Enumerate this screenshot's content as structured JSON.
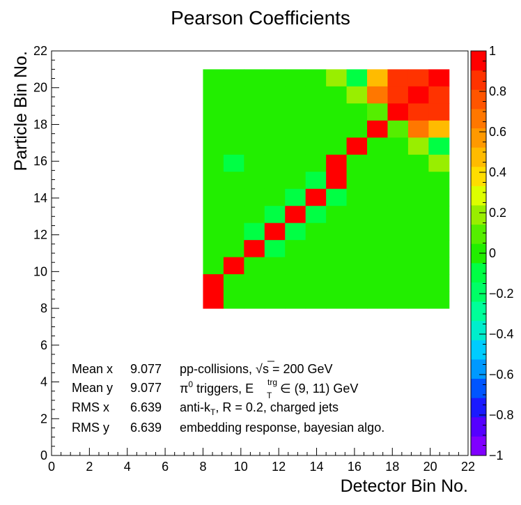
{
  "chart_data": {
    "type": "heatmap",
    "title": "Pearson Coefficients",
    "xlabel": "Detector Bin No.",
    "ylabel": "Particle Bin No.",
    "xlim": [
      0,
      22
    ],
    "ylim": [
      0,
      22
    ],
    "x_ticks": [
      "0",
      "2",
      "4",
      "6",
      "8",
      "10",
      "12",
      "14",
      "16",
      "18",
      "20",
      "22"
    ],
    "y_ticks": [
      "0",
      "2",
      "4",
      "6",
      "8",
      "10",
      "12",
      "14",
      "16",
      "18",
      "20",
      "22"
    ],
    "z_range": [
      -1,
      1
    ],
    "z_ticks": [
      "1",
      "0.8",
      "0.6",
      "0.4",
      "0.2",
      "0",
      "−0.2",
      "−0.4",
      "−0.6",
      "−0.8",
      "−1"
    ],
    "bin_range": [
      8,
      21
    ],
    "matrix_rows_top_to_bottom": [
      [
        0.02,
        0.02,
        0.02,
        -0.03,
        -0.03,
        -0.03,
        0.15,
        -0.12,
        0.45,
        0.9,
        0.9,
        0.95
      ],
      [
        0.02,
        0.02,
        0.02,
        -0.03,
        -0.03,
        0.02,
        -0.03,
        0.22,
        0.7,
        0.9,
        0.95,
        0.9
      ],
      [
        0.02,
        0.02,
        0.02,
        -0.03,
        -0.03,
        0.02,
        -0.03,
        -0.03,
        0.12,
        0.95,
        0.85,
        0.85
      ],
      [
        0.02,
        0.02,
        0.02,
        0.02,
        0.02,
        -0.03,
        -0.03,
        0.02,
        0.95,
        0.12,
        0.7,
        0.45
      ],
      [
        0.02,
        -0.03,
        -0.03,
        0.02,
        -0.03,
        -0.03,
        -0.03,
        0.95,
        0.02,
        -0.03,
        0.22,
        -0.12
      ],
      [
        0.02,
        -0.06,
        0.02,
        0.02,
        -0.03,
        -0.03,
        0.95,
        -0.03,
        -0.03,
        -0.03,
        -0.03,
        0.22
      ],
      [
        0.02,
        0.02,
        0.02,
        -0.03,
        -0.03,
        -0.08,
        0.95,
        -0.03,
        -0.03,
        0.02,
        0.02,
        -0.03
      ],
      [
        0.02,
        0.02,
        0.02,
        -0.03,
        -0.08,
        0.95,
        -0.06,
        -0.03,
        -0.03,
        -0.03,
        -0.03,
        -0.03
      ],
      [
        0.02,
        0.02,
        0.02,
        -0.08,
        0.95,
        -0.06,
        -0.03,
        -0.03,
        0.02,
        -0.03,
        -0.03,
        -0.03
      ],
      [
        0.02,
        -0.03,
        -0.08,
        0.95,
        -0.06,
        -0.03,
        -0.03,
        0.02,
        0.02,
        -0.03,
        -0.03,
        -0.03
      ],
      [
        -0.03,
        0.02,
        0.95,
        -0.06,
        -0.03,
        -0.03,
        0.02,
        -0.03,
        -0.03,
        -0.03,
        -0.03,
        -0.03
      ],
      [
        -0.03,
        0.95,
        -0.03,
        -0.03,
        0.02,
        0.02,
        0.02,
        -0.03,
        0.02,
        0.02,
        0.02,
        0.02
      ],
      [
        0.95,
        -0.03,
        0.02,
        0.02,
        0.02,
        0.02,
        -0.03,
        0.02,
        0.02,
        0.02,
        0.02,
        0.02
      ],
      [
        0.95,
        -0.03,
        -0.03,
        0.02,
        0.02,
        0.02,
        0.02,
        0.02,
        0.02,
        0.02,
        0.02,
        0.02
      ]
    ],
    "colormap": [
      "#8000ff",
      "#5500ff",
      "#1a1aff",
      "#0055ff",
      "#0099ff",
      "#00ccff",
      "#00eecc",
      "#00ff99",
      "#00ff66",
      "#00ff44",
      "#22ee00",
      "#55ee00",
      "#99ee00",
      "#ddff00",
      "#ffdd00",
      "#ffbb00",
      "#ff9900",
      "#ff7700",
      "#ff5500",
      "#ff3300",
      "#ff0000"
    ]
  },
  "stats": [
    {
      "label": "Mean x",
      "value": "9.077"
    },
    {
      "label": "Mean y",
      "value": "9.077"
    },
    {
      "label": "RMS x",
      "value": "6.639"
    },
    {
      "label": "RMS y",
      "value": "6.639"
    }
  ],
  "annotations": {
    "line1_pre": "pp-collisions, ",
    "line1_sqrt": "√",
    "line1_s": "s",
    "line1_post": " = 200 GeV",
    "line2_pi": "π",
    "line2_sup0": "0",
    "line2_mid": " triggers, E",
    "line2_sup_trg": "trg",
    "line2_sub_T": "T",
    "line2_post": " ∈ (9, 11) GeV",
    "line3_pre": "anti-k",
    "line3_sub_T": "T",
    "line3_post": ", R = 0.2, charged jets",
    "line4": "embedding response, bayesian algo."
  }
}
